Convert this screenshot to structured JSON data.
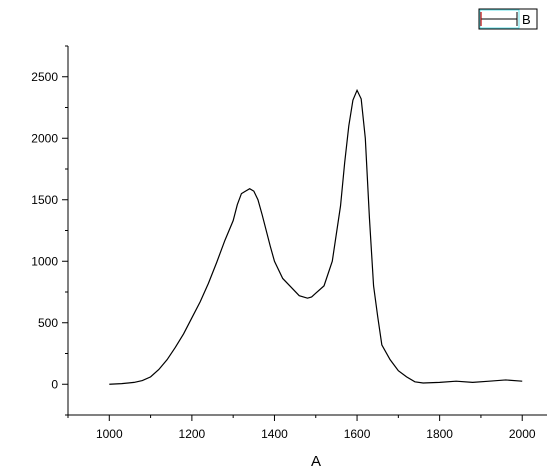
{
  "chart_data": {
    "type": "line",
    "title": "",
    "xlabel": "A",
    "ylabel": "",
    "xlim": [
      900,
      2060
    ],
    "ylim": [
      -250,
      2750
    ],
    "x_ticks": [
      1000,
      1200,
      1400,
      1600,
      1800,
      2000
    ],
    "y_ticks": [
      0,
      500,
      1000,
      1500,
      2000,
      2500
    ],
    "grid": false,
    "legend": {
      "position": "top-right",
      "entries": [
        "B"
      ]
    },
    "series": [
      {
        "name": "B",
        "color": "#000000",
        "x": [
          1000,
          1030,
          1060,
          1080,
          1100,
          1120,
          1140,
          1160,
          1180,
          1200,
          1220,
          1240,
          1260,
          1280,
          1300,
          1310,
          1320,
          1330,
          1340,
          1350,
          1360,
          1370,
          1380,
          1390,
          1400,
          1420,
          1440,
          1460,
          1480,
          1490,
          1500,
          1520,
          1540,
          1560,
          1570,
          1580,
          1590,
          1600,
          1610,
          1620,
          1630,
          1640,
          1650,
          1660,
          1680,
          1700,
          1720,
          1740,
          1760,
          1800,
          1840,
          1880,
          1920,
          1960,
          2000
        ],
        "y": [
          0,
          5,
          15,
          30,
          60,
          120,
          200,
          300,
          410,
          540,
          670,
          820,
          990,
          1170,
          1330,
          1460,
          1550,
          1570,
          1590,
          1570,
          1500,
          1380,
          1250,
          1120,
          1000,
          860,
          790,
          720,
          700,
          710,
          740,
          800,
          1000,
          1450,
          1800,
          2100,
          2310,
          2390,
          2320,
          2000,
          1350,
          800,
          550,
          320,
          200,
          110,
          60,
          20,
          10,
          15,
          25,
          15,
          25,
          35,
          25
        ]
      }
    ]
  }
}
